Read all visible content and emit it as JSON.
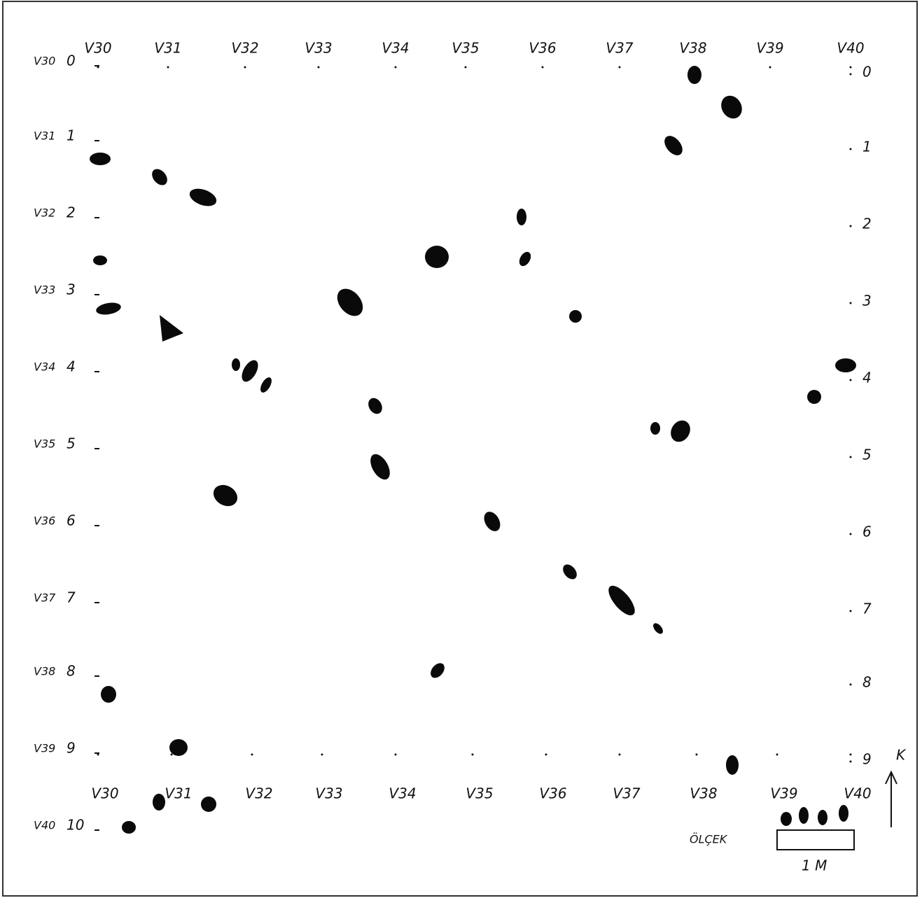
{
  "top_labels": [
    "V30",
    "V31",
    "V32",
    "V33",
    "V34",
    "V35",
    "V36",
    "V37",
    "V38",
    "V39",
    "V40"
  ],
  "bottom_labels": [
    "V30",
    "V31",
    "V32",
    "V33",
    "V34",
    "V35",
    "V36",
    "V37",
    "V38",
    "V39",
    "V40"
  ],
  "rows": [
    [
      "V30",
      "0"
    ],
    [
      "V31",
      "1"
    ],
    [
      "V32",
      "2"
    ],
    [
      "V33",
      "3"
    ],
    [
      "V34",
      "4"
    ],
    [
      "V35",
      "5"
    ],
    [
      "V36",
      "6"
    ],
    [
      "V37",
      "7"
    ],
    [
      "V38",
      "8"
    ],
    [
      "V39",
      "9"
    ],
    [
      "V40",
      "10"
    ]
  ],
  "right_labels": [
    "0",
    "1",
    "2",
    "3",
    "4",
    "5",
    "6",
    "7",
    "8",
    "9"
  ],
  "north": "K",
  "scale": {
    "label": "ÖLÇEK",
    "value": "1 M"
  }
}
